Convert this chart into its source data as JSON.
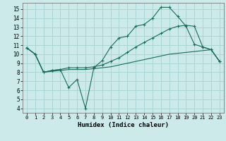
{
  "xlabel": "Humidex (Indice chaleur)",
  "background_color": "#cceaea",
  "grid_color": "#aad4d4",
  "line_color": "#1a6b5a",
  "xlim": [
    -0.5,
    23.5
  ],
  "ylim": [
    3.5,
    15.7
  ],
  "xticks": [
    0,
    1,
    2,
    3,
    4,
    5,
    6,
    7,
    8,
    9,
    10,
    11,
    12,
    13,
    14,
    15,
    16,
    17,
    18,
    19,
    20,
    21,
    22,
    23
  ],
  "yticks": [
    4,
    5,
    6,
    7,
    8,
    9,
    10,
    11,
    12,
    13,
    14,
    15
  ],
  "line1_x": [
    0,
    1,
    2,
    3,
    4,
    5,
    6,
    7,
    8,
    9,
    10,
    11,
    12,
    13,
    14,
    15,
    16,
    17,
    18,
    19,
    20,
    21,
    22,
    23
  ],
  "line1_y": [
    10.7,
    10.0,
    8.0,
    8.2,
    8.3,
    6.3,
    7.2,
    4.0,
    8.5,
    9.3,
    10.8,
    11.8,
    12.0,
    13.1,
    13.3,
    14.0,
    15.2,
    15.2,
    14.2,
    13.1,
    11.1,
    10.8,
    10.5,
    9.2
  ],
  "line2_x": [
    0,
    1,
    2,
    3,
    4,
    5,
    6,
    7,
    8,
    9,
    10,
    11,
    12,
    13,
    14,
    15,
    16,
    17,
    18,
    19,
    20,
    21,
    22,
    23
  ],
  "line2_y": [
    10.7,
    10.0,
    8.0,
    8.2,
    8.3,
    8.5,
    8.5,
    8.5,
    8.6,
    8.8,
    9.2,
    9.6,
    10.2,
    10.8,
    11.3,
    11.8,
    12.3,
    12.8,
    13.1,
    13.2,
    13.1,
    10.8,
    10.5,
    9.2
  ],
  "line3_x": [
    0,
    1,
    2,
    3,
    4,
    5,
    6,
    7,
    8,
    9,
    10,
    11,
    12,
    13,
    14,
    15,
    16,
    17,
    18,
    19,
    20,
    21,
    22,
    23
  ],
  "line3_y": [
    10.7,
    10.0,
    8.0,
    8.1,
    8.2,
    8.3,
    8.3,
    8.3,
    8.4,
    8.5,
    8.6,
    8.8,
    9.0,
    9.2,
    9.4,
    9.6,
    9.8,
    10.0,
    10.1,
    10.2,
    10.3,
    10.4,
    10.5,
    9.2
  ]
}
